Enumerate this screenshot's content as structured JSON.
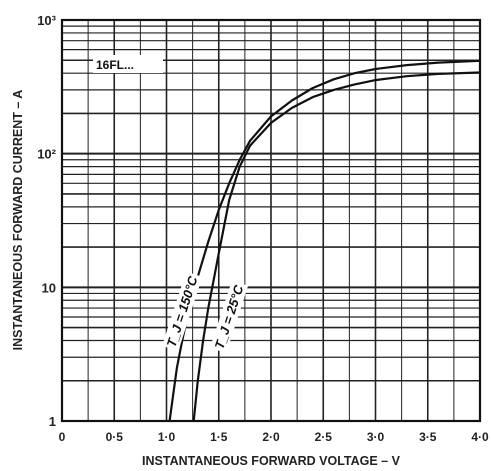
{
  "chart_data": {
    "type": "line",
    "title": "",
    "xlabel": "INSTANTANEOUS FORWARD VOLTAGE – V",
    "ylabel": "INSTANTANEOUS FORWARD CURRENT – A",
    "xlim": [
      0,
      4.0
    ],
    "ylim": [
      1,
      1000
    ],
    "yscale": "log",
    "grid": true,
    "x_ticks": [
      "0",
      "0·5",
      "1·0",
      "1·5",
      "2·0",
      "2·5",
      "3·0",
      "3·5",
      "4·0"
    ],
    "y_ticks": [
      {
        "value": 1,
        "label": "1"
      },
      {
        "value": 10,
        "label": "10"
      },
      {
        "value": 100,
        "label": "10²"
      },
      {
        "value": 1000,
        "label": "10³"
      }
    ],
    "annotation": "16FL...",
    "series": [
      {
        "name": "T_J = 150°C",
        "x": [
          1.03,
          1.06,
          1.1,
          1.15,
          1.2,
          1.3,
          1.4,
          1.5,
          1.6,
          1.7,
          1.8,
          2.0,
          2.2,
          2.4,
          2.6,
          2.8,
          3.0,
          3.3,
          3.6,
          4.0
        ],
        "y": [
          1,
          1.5,
          2.5,
          4,
          6,
          12,
          22,
          38,
          60,
          90,
          125,
          190,
          250,
          310,
          360,
          400,
          430,
          460,
          480,
          495
        ]
      },
      {
        "name": "T_J = 25°C",
        "x": [
          1.26,
          1.3,
          1.35,
          1.4,
          1.5,
          1.6,
          1.7,
          1.8,
          2.0,
          2.2,
          2.4,
          2.6,
          2.8,
          3.0,
          3.3,
          3.6,
          4.0
        ],
        "y": [
          1,
          2,
          4,
          7,
          18,
          45,
          80,
          115,
          170,
          220,
          265,
          300,
          330,
          355,
          380,
          395,
          405
        ]
      }
    ]
  }
}
